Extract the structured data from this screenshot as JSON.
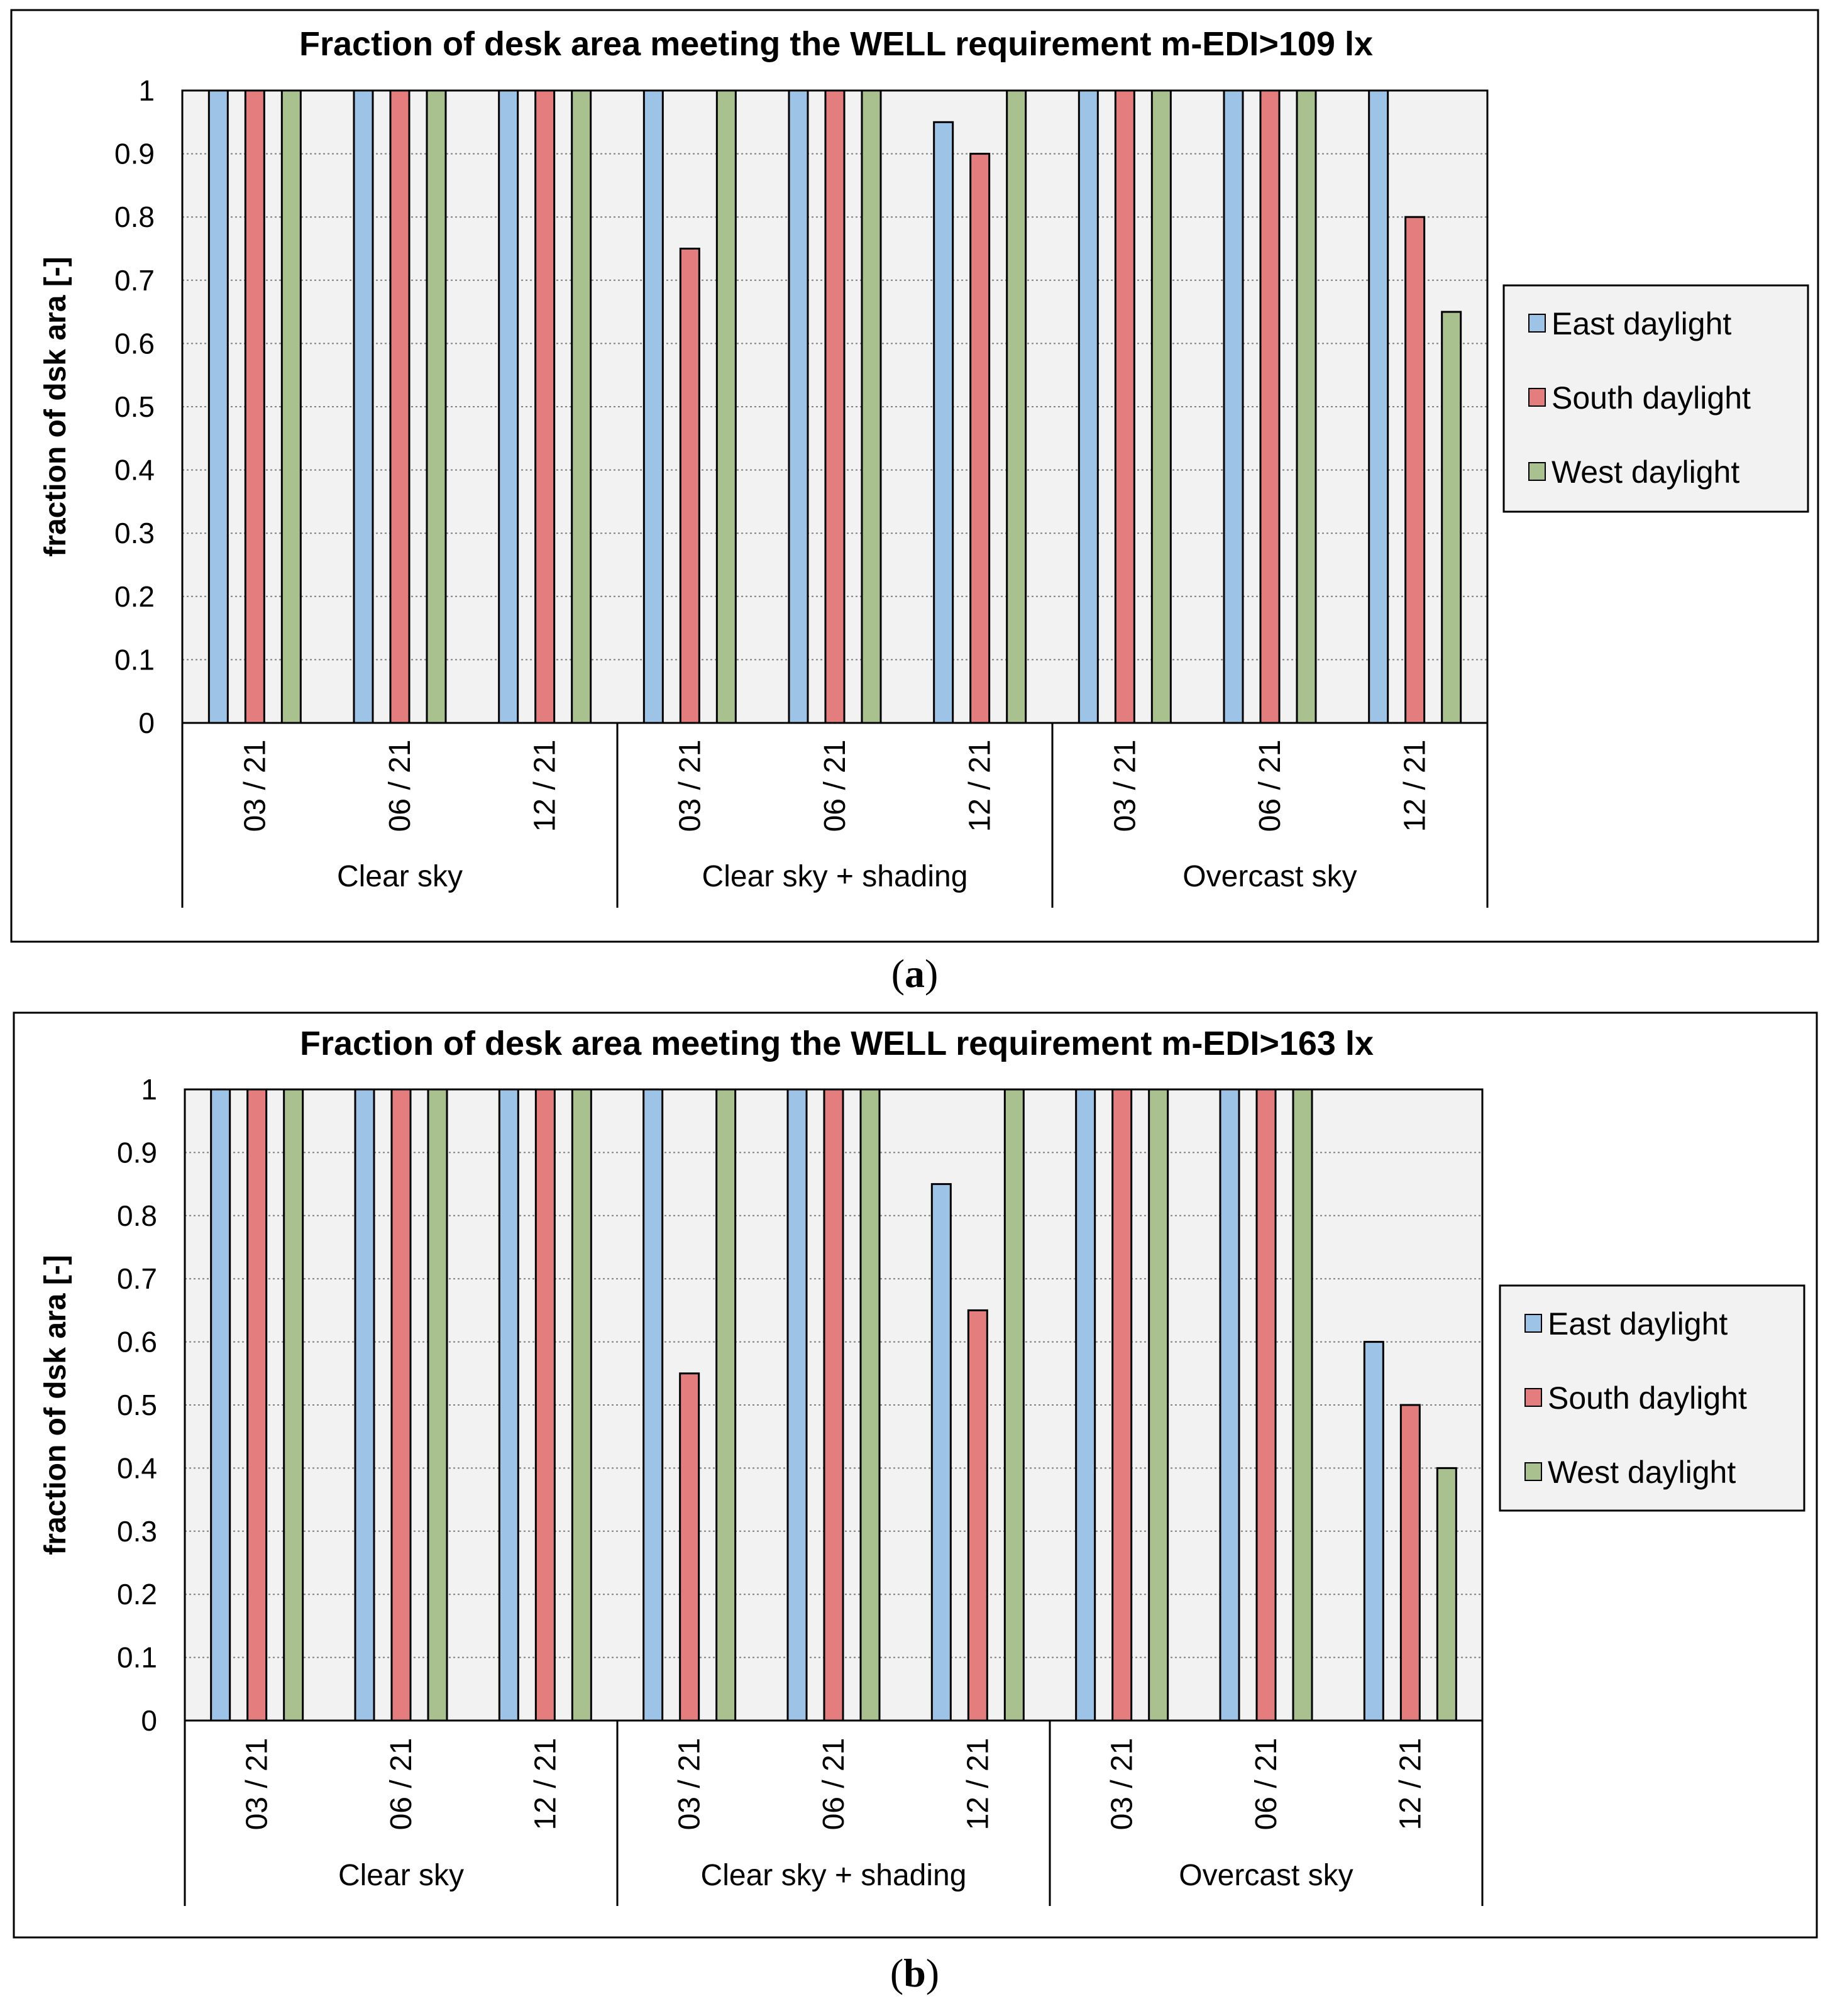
{
  "chart_data": [
    {
      "type": "bar",
      "title": "Fraction of desk area meeting the WELL requirement m-EDI>109 lx",
      "caption_letter": "a",
      "ylabel": "fraction of dsk ara  [-]",
      "xlabel": "",
      "ylim": [
        0,
        1
      ],
      "yticks": [
        "0",
        "0.1",
        "0.2",
        "0.3",
        "0.4",
        "0.5",
        "0.6",
        "0.7",
        "0.8",
        "0.9",
        "1"
      ],
      "grid": true,
      "legend_position": "right",
      "groups": [
        {
          "label": "Clear sky",
          "categories": [
            "03 / 21",
            "06 / 21",
            "12 / 21"
          ]
        },
        {
          "label": "Clear sky + shading",
          "categories": [
            "03 / 21",
            "06 / 21",
            "12 / 21"
          ]
        },
        {
          "label": "Overcast sky",
          "categories": [
            "03 / 21",
            "06 / 21",
            "12 / 21"
          ]
        }
      ],
      "series": [
        {
          "name": "East daylight",
          "color": "#9dc3e6",
          "values": [
            1,
            1,
            1,
            1,
            1,
            0.95,
            1,
            1,
            1
          ]
        },
        {
          "name": "South daylight",
          "color": "#e47e7e",
          "values": [
            1,
            1,
            1,
            0.75,
            1,
            0.9,
            1,
            1,
            0.8
          ]
        },
        {
          "name": "West daylight",
          "color": "#a9c18f",
          "values": [
            1,
            1,
            1,
            1,
            1,
            1,
            1,
            1,
            0.65
          ]
        }
      ]
    },
    {
      "type": "bar",
      "title": "Fraction of desk area meeting the WELL requirement m-EDI>163 lx",
      "caption_letter": "b",
      "ylabel": "fraction of dsk ara  [-]",
      "xlabel": "",
      "ylim": [
        0,
        1
      ],
      "yticks": [
        "0",
        "0.1",
        "0.2",
        "0.3",
        "0.4",
        "0.5",
        "0.6",
        "0.7",
        "0.8",
        "0.9",
        "1"
      ],
      "grid": true,
      "legend_position": "right",
      "groups": [
        {
          "label": "Clear sky",
          "categories": [
            "03 / 21",
            "06 / 21",
            "12 / 21"
          ]
        },
        {
          "label": "Clear sky + shading",
          "categories": [
            "03 / 21",
            "06 / 21",
            "12 / 21"
          ]
        },
        {
          "label": "Overcast sky",
          "categories": [
            "03 / 21",
            "06 / 21",
            "12 / 21"
          ]
        }
      ],
      "series": [
        {
          "name": "East daylight",
          "color": "#9dc3e6",
          "values": [
            1,
            1,
            1,
            1,
            1,
            0.85,
            1,
            1,
            0.6
          ]
        },
        {
          "name": "South daylight",
          "color": "#e47e7e",
          "values": [
            1,
            1,
            1,
            0.55,
            1,
            0.65,
            1,
            1,
            0.5
          ]
        },
        {
          "name": "West daylight",
          "color": "#a9c18f",
          "values": [
            1,
            1,
            1,
            1,
            1,
            1,
            1,
            1,
            0.4
          ]
        }
      ]
    }
  ],
  "colors": {
    "plot_background": "#f2f2f2",
    "grid": "#7f7f7f",
    "outline": "#000000"
  }
}
